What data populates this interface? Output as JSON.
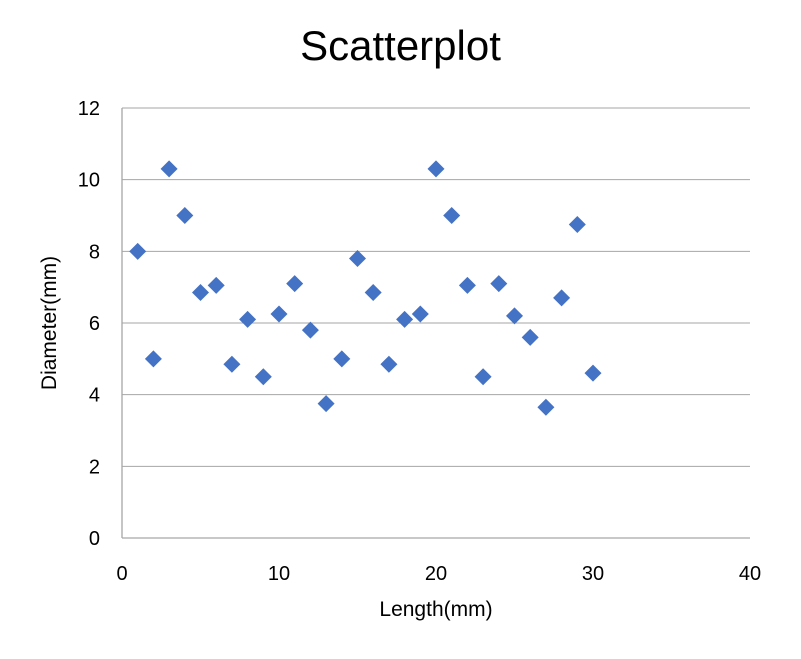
{
  "chart_data": {
    "type": "scatter",
    "title": "Scatterplot",
    "xlabel": "Length(mm)",
    "ylabel": "Diameter(mm)",
    "xlim": [
      0,
      40
    ],
    "ylim": [
      0,
      12
    ],
    "xticks": [
      0,
      10,
      20,
      30,
      40
    ],
    "yticks": [
      0,
      2,
      4,
      6,
      8,
      10,
      12
    ],
    "grid": "horizontal",
    "legend": "none",
    "marker": "diamond",
    "marker_color": "#4472C4",
    "gridline_color": "#A6A6A6",
    "points": [
      {
        "x": 1,
        "y": 8.0
      },
      {
        "x": 2,
        "y": 5.0
      },
      {
        "x": 3,
        "y": 10.3
      },
      {
        "x": 4,
        "y": 9.0
      },
      {
        "x": 5,
        "y": 6.85
      },
      {
        "x": 6,
        "y": 7.05
      },
      {
        "x": 7,
        "y": 4.85
      },
      {
        "x": 8,
        "y": 6.1
      },
      {
        "x": 9,
        "y": 4.5
      },
      {
        "x": 10,
        "y": 6.25
      },
      {
        "x": 11,
        "y": 7.1
      },
      {
        "x": 12,
        "y": 5.8
      },
      {
        "x": 13,
        "y": 3.75
      },
      {
        "x": 14,
        "y": 5.0
      },
      {
        "x": 15,
        "y": 7.8
      },
      {
        "x": 16,
        "y": 6.85
      },
      {
        "x": 17,
        "y": 4.85
      },
      {
        "x": 18,
        "y": 6.1
      },
      {
        "x": 19,
        "y": 6.25
      },
      {
        "x": 20,
        "y": 10.3
      },
      {
        "x": 21,
        "y": 9.0
      },
      {
        "x": 22,
        "y": 7.05
      },
      {
        "x": 23,
        "y": 4.5
      },
      {
        "x": 24,
        "y": 7.1
      },
      {
        "x": 25,
        "y": 6.2
      },
      {
        "x": 26,
        "y": 5.6
      },
      {
        "x": 27,
        "y": 3.65
      },
      {
        "x": 28,
        "y": 6.7
      },
      {
        "x": 29,
        "y": 8.75
      },
      {
        "x": 30,
        "y": 4.6
      }
    ]
  }
}
